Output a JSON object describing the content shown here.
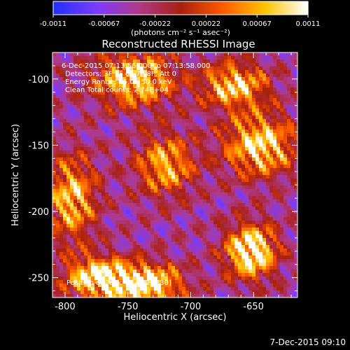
{
  "chart_data": {
    "type": "heatmap",
    "title": "Reconstructed RHESSI Image",
    "xlabel": "Heliocentric X (arcsec)",
    "ylabel": "Heliocentric Y (arcsec)",
    "xlim": [
      -810,
      -615
    ],
    "ylim": [
      -265,
      -80
    ],
    "xticks": [
      -800,
      -750,
      -700,
      -650
    ],
    "yticks": [
      -250,
      -200,
      -150,
      -100
    ],
    "colorbar": {
      "min": -0.0011,
      "max": 0.0011,
      "ticks": [
        "-0.0011",
        "-0.00067",
        "-0.00022",
        "0.00022",
        "0.00067",
        "0.0011"
      ],
      "units_label": "(photons cm⁻² s⁻¹ asec⁻²)",
      "colors": [
        "#2430ff",
        "#7a3cff",
        "#b03a8a",
        "#a82010",
        "#ff5a00",
        "#ffc400",
        "#ffffff"
      ]
    },
    "annotations": [
      "6-Dec-2015 07:13:56.000 to 07:13:58.000",
      "Detectors: 3F 5F 6F 7F 8F, Att 0",
      "Energy Range: 25.0 - 50.0 keV",
      "Clean    Total counts: 2.74E+04"
    ],
    "peak_label": "Position of Peak = [-652,-230]",
    "peak_position": [
      -652,
      -230
    ],
    "blobs": [
      {
        "x": -652,
        "y": -230,
        "amp": 1.0,
        "sx": 14,
        "sy": 14
      },
      {
        "x": -775,
        "y": -250,
        "amp": 0.85,
        "sx": 18,
        "sy": 11
      },
      {
        "x": -735,
        "y": -255,
        "amp": 0.9,
        "sx": 20,
        "sy": 11
      },
      {
        "x": -745,
        "y": -100,
        "amp": 0.8,
        "sx": 22,
        "sy": 14
      },
      {
        "x": -665,
        "y": -105,
        "amp": 0.75,
        "sx": 18,
        "sy": 12
      },
      {
        "x": -645,
        "y": -150,
        "amp": 0.8,
        "sx": 20,
        "sy": 16
      },
      {
        "x": -795,
        "y": -190,
        "amp": 0.7,
        "sx": 14,
        "sy": 22
      },
      {
        "x": -720,
        "y": -165,
        "amp": 0.65,
        "sx": 16,
        "sy": 16
      }
    ],
    "grid": false
  },
  "footer": {
    "date": "7-Dec-2015 09:10"
  }
}
